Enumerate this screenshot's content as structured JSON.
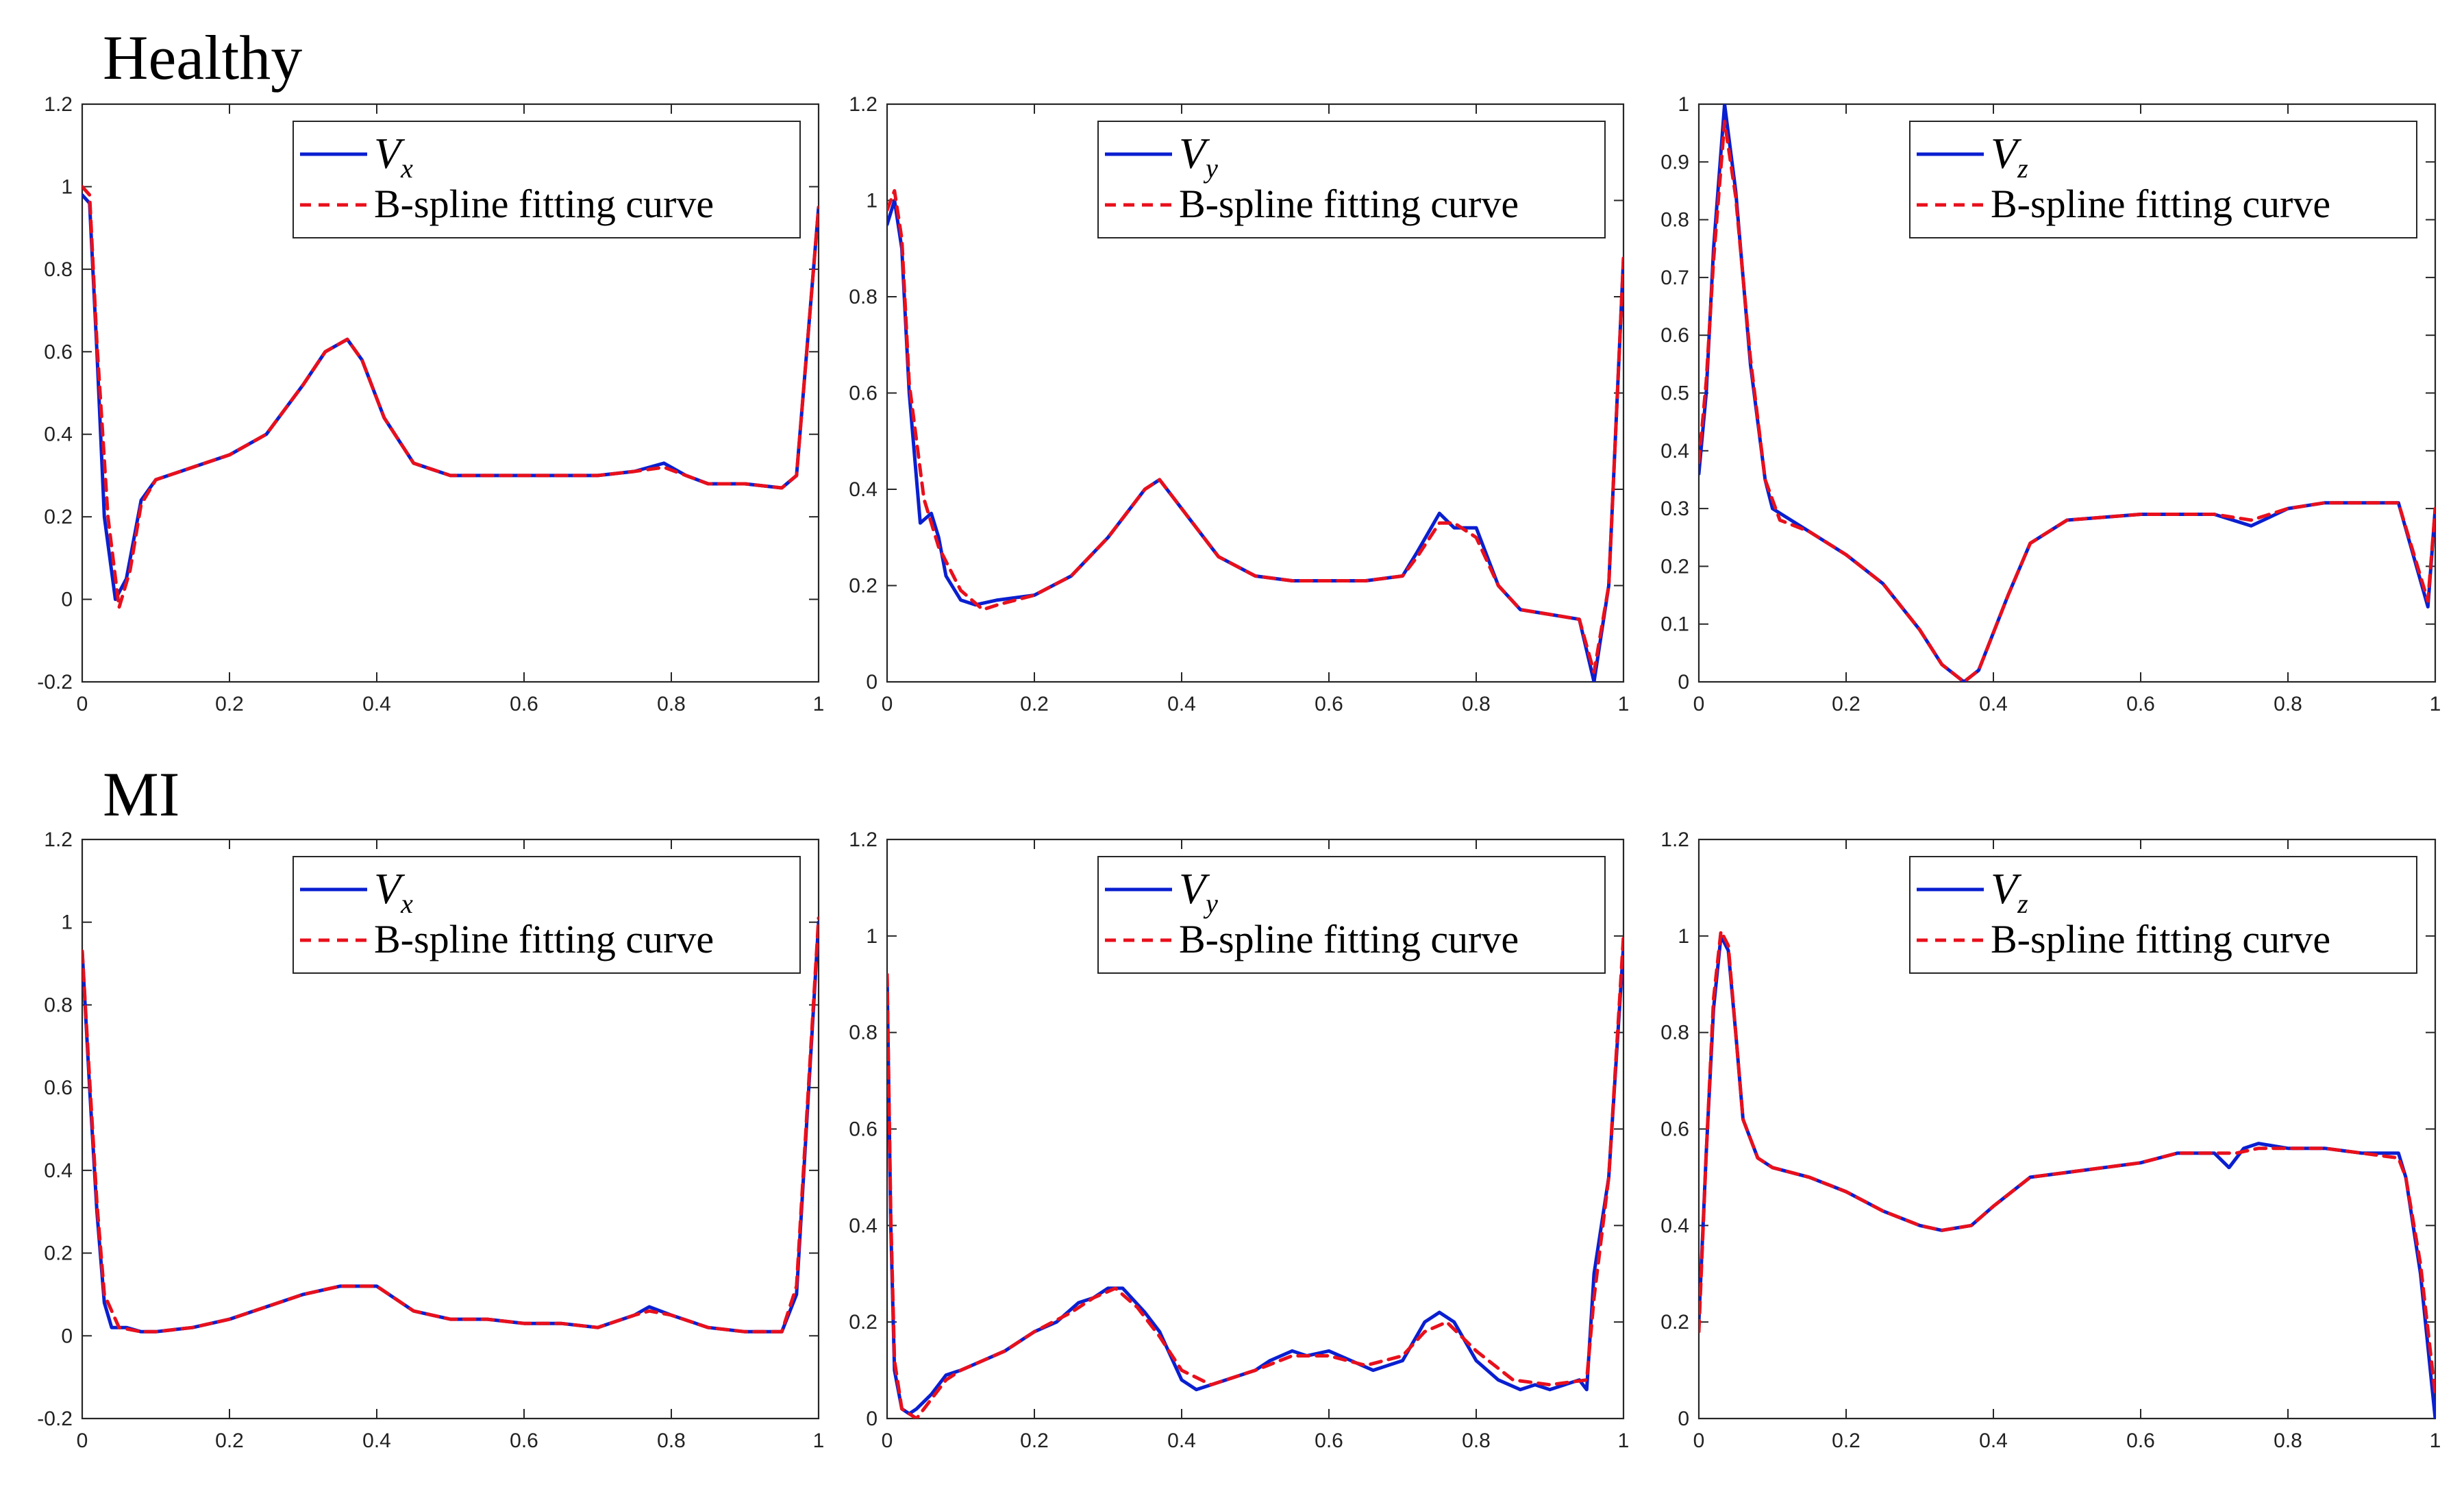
{
  "figure": {
    "row_titles": [
      "Healthy",
      "MI"
    ]
  },
  "colors": {
    "signal": "#0a1fd0",
    "fit": "#e8101c",
    "axis": "#262626"
  },
  "chart_data": [
    {
      "id": "healthy-vx",
      "type": "line",
      "row": "Healthy",
      "variable": "V",
      "subscript": "x",
      "xlim": [
        0,
        1
      ],
      "ylim": [
        -0.2,
        1.2
      ],
      "xticks": [
        "0",
        "0.2",
        "0.4",
        "0.6",
        "0.8",
        "1"
      ],
      "yticks": [
        "-0.2",
        "0",
        "0.2",
        "0.4",
        "0.6",
        "0.8",
        "1",
        "1.2"
      ],
      "legend": [
        "V_x",
        "B-spline fitting curve"
      ],
      "series": [
        {
          "name": "V_x",
          "style": "solid",
          "x": [
            0,
            0.01,
            0.02,
            0.03,
            0.045,
            0.06,
            0.08,
            0.1,
            0.15,
            0.2,
            0.25,
            0.3,
            0.33,
            0.36,
            0.38,
            0.41,
            0.45,
            0.5,
            0.6,
            0.7,
            0.75,
            0.79,
            0.82,
            0.85,
            0.9,
            0.95,
            0.97,
            1.0
          ],
          "y": [
            0.98,
            0.96,
            0.6,
            0.2,
            0.0,
            0.05,
            0.24,
            0.29,
            0.32,
            0.35,
            0.4,
            0.52,
            0.6,
            0.63,
            0.58,
            0.44,
            0.33,
            0.3,
            0.3,
            0.3,
            0.31,
            0.33,
            0.3,
            0.28,
            0.28,
            0.27,
            0.3,
            0.95
          ]
        },
        {
          "name": "B-spline fitting curve",
          "style": "dashed",
          "x": [
            0,
            0.01,
            0.02,
            0.035,
            0.05,
            0.065,
            0.08,
            0.1,
            0.15,
            0.2,
            0.25,
            0.3,
            0.33,
            0.36,
            0.38,
            0.41,
            0.45,
            0.5,
            0.6,
            0.7,
            0.75,
            0.79,
            0.82,
            0.85,
            0.9,
            0.95,
            0.97,
            1.0
          ],
          "y": [
            1.0,
            0.98,
            0.62,
            0.2,
            -0.02,
            0.07,
            0.23,
            0.29,
            0.32,
            0.35,
            0.4,
            0.52,
            0.6,
            0.63,
            0.58,
            0.44,
            0.33,
            0.3,
            0.3,
            0.3,
            0.31,
            0.32,
            0.3,
            0.28,
            0.28,
            0.27,
            0.3,
            0.95
          ]
        }
      ]
    },
    {
      "id": "healthy-vy",
      "type": "line",
      "row": "Healthy",
      "variable": "V",
      "subscript": "y",
      "xlim": [
        0,
        1
      ],
      "ylim": [
        0,
        1.2
      ],
      "xticks": [
        "0",
        "0.2",
        "0.4",
        "0.6",
        "0.8",
        "1"
      ],
      "yticks": [
        "0",
        "0.2",
        "0.4",
        "0.6",
        "0.8",
        "1",
        "1.2"
      ],
      "legend": [
        "V_y",
        "B-spline fitting curve"
      ],
      "series": [
        {
          "name": "V_y",
          "style": "solid",
          "x": [
            0,
            0.01,
            0.02,
            0.03,
            0.045,
            0.06,
            0.07,
            0.08,
            0.1,
            0.12,
            0.15,
            0.2,
            0.25,
            0.3,
            0.35,
            0.37,
            0.4,
            0.45,
            0.5,
            0.55,
            0.6,
            0.65,
            0.7,
            0.72,
            0.75,
            0.77,
            0.8,
            0.83,
            0.86,
            0.9,
            0.94,
            0.96,
            0.98,
            1.0
          ],
          "y": [
            0.95,
            1.0,
            0.9,
            0.6,
            0.33,
            0.35,
            0.3,
            0.22,
            0.17,
            0.16,
            0.17,
            0.18,
            0.22,
            0.3,
            0.4,
            0.42,
            0.36,
            0.26,
            0.22,
            0.21,
            0.21,
            0.21,
            0.22,
            0.27,
            0.35,
            0.32,
            0.32,
            0.2,
            0.15,
            0.14,
            0.13,
            0.0,
            0.2,
            0.88
          ]
        },
        {
          "name": "B-spline fitting curve",
          "style": "dashed",
          "x": [
            0,
            0.01,
            0.02,
            0.03,
            0.05,
            0.07,
            0.1,
            0.13,
            0.15,
            0.2,
            0.25,
            0.3,
            0.35,
            0.37,
            0.4,
            0.45,
            0.5,
            0.55,
            0.6,
            0.65,
            0.7,
            0.72,
            0.75,
            0.77,
            0.8,
            0.83,
            0.86,
            0.9,
            0.94,
            0.96,
            0.98,
            1.0
          ],
          "y": [
            0.98,
            1.02,
            0.92,
            0.62,
            0.38,
            0.28,
            0.19,
            0.15,
            0.16,
            0.18,
            0.22,
            0.3,
            0.4,
            0.42,
            0.36,
            0.26,
            0.22,
            0.21,
            0.21,
            0.21,
            0.22,
            0.26,
            0.33,
            0.33,
            0.3,
            0.2,
            0.15,
            0.14,
            0.13,
            0.02,
            0.2,
            0.88
          ]
        }
      ]
    },
    {
      "id": "healthy-vz",
      "type": "line",
      "row": "Healthy",
      "variable": "V",
      "subscript": "z",
      "xlim": [
        0,
        1
      ],
      "ylim": [
        0,
        1
      ],
      "xticks": [
        "0",
        "0.2",
        "0.4",
        "0.6",
        "0.8",
        "1"
      ],
      "yticks": [
        "0",
        "0.1",
        "0.2",
        "0.3",
        "0.4",
        "0.5",
        "0.6",
        "0.7",
        "0.8",
        "0.9",
        "1"
      ],
      "legend": [
        "V_z",
        "B-spline fitting curve"
      ],
      "series": [
        {
          "name": "V_z",
          "style": "solid",
          "x": [
            0,
            0.01,
            0.02,
            0.035,
            0.05,
            0.07,
            0.09,
            0.1,
            0.15,
            0.2,
            0.25,
            0.3,
            0.33,
            0.36,
            0.38,
            0.42,
            0.45,
            0.5,
            0.6,
            0.7,
            0.75,
            0.8,
            0.85,
            0.9,
            0.95,
            0.99,
            1.0
          ],
          "y": [
            0.36,
            0.5,
            0.75,
            1.0,
            0.85,
            0.55,
            0.35,
            0.3,
            0.26,
            0.22,
            0.17,
            0.09,
            0.03,
            0.0,
            0.02,
            0.15,
            0.24,
            0.28,
            0.29,
            0.29,
            0.27,
            0.3,
            0.31,
            0.31,
            0.31,
            0.13,
            0.3
          ]
        },
        {
          "name": "B-spline fitting curve",
          "style": "dashed",
          "x": [
            0,
            0.01,
            0.02,
            0.035,
            0.05,
            0.07,
            0.09,
            0.11,
            0.15,
            0.2,
            0.25,
            0.3,
            0.33,
            0.36,
            0.38,
            0.42,
            0.45,
            0.5,
            0.6,
            0.7,
            0.75,
            0.8,
            0.85,
            0.9,
            0.95,
            0.99,
            1.0
          ],
          "y": [
            0.38,
            0.52,
            0.73,
            0.97,
            0.84,
            0.56,
            0.35,
            0.28,
            0.26,
            0.22,
            0.17,
            0.09,
            0.03,
            0.0,
            0.02,
            0.15,
            0.24,
            0.28,
            0.29,
            0.29,
            0.28,
            0.3,
            0.31,
            0.31,
            0.31,
            0.14,
            0.3
          ]
        }
      ]
    },
    {
      "id": "mi-vx",
      "type": "line",
      "row": "MI",
      "variable": "V",
      "subscript": "x",
      "xlim": [
        0,
        1
      ],
      "ylim": [
        -0.2,
        1.2
      ],
      "xticks": [
        "0",
        "0.2",
        "0.4",
        "0.6",
        "0.8",
        "1"
      ],
      "yticks": [
        "-0.2",
        "0",
        "0.2",
        "0.4",
        "0.6",
        "0.8",
        "1",
        "1.2"
      ],
      "legend": [
        "V_x",
        "B-spline fitting curve"
      ],
      "series": [
        {
          "name": "V_x",
          "style": "solid",
          "x": [
            0,
            0.01,
            0.02,
            0.03,
            0.04,
            0.06,
            0.08,
            0.1,
            0.15,
            0.2,
            0.25,
            0.3,
            0.35,
            0.4,
            0.45,
            0.5,
            0.55,
            0.6,
            0.65,
            0.7,
            0.75,
            0.77,
            0.8,
            0.85,
            0.9,
            0.95,
            0.97,
            1.0
          ],
          "y": [
            0.93,
            0.6,
            0.3,
            0.08,
            0.02,
            0.02,
            0.01,
            0.01,
            0.02,
            0.04,
            0.07,
            0.1,
            0.12,
            0.12,
            0.06,
            0.04,
            0.04,
            0.03,
            0.03,
            0.02,
            0.05,
            0.07,
            0.05,
            0.02,
            0.01,
            0.01,
            0.1,
            1.0
          ]
        },
        {
          "name": "B-spline fitting curve",
          "style": "dashed",
          "x": [
            0,
            0.01,
            0.02,
            0.03,
            0.05,
            0.08,
            0.1,
            0.15,
            0.2,
            0.25,
            0.3,
            0.35,
            0.4,
            0.45,
            0.5,
            0.55,
            0.6,
            0.65,
            0.7,
            0.75,
            0.77,
            0.8,
            0.85,
            0.9,
            0.95,
            0.97,
            1.0
          ],
          "y": [
            0.93,
            0.62,
            0.32,
            0.1,
            0.02,
            0.01,
            0.01,
            0.02,
            0.04,
            0.07,
            0.1,
            0.12,
            0.12,
            0.06,
            0.04,
            0.04,
            0.03,
            0.03,
            0.02,
            0.05,
            0.06,
            0.05,
            0.02,
            0.01,
            0.01,
            0.12,
            1.01
          ]
        }
      ]
    },
    {
      "id": "mi-vy",
      "type": "line",
      "row": "MI",
      "variable": "V",
      "subscript": "y",
      "xlim": [
        0,
        1
      ],
      "ylim": [
        0,
        1.2
      ],
      "xticks": [
        "0",
        "0.2",
        "0.4",
        "0.6",
        "0.8",
        "1"
      ],
      "yticks": [
        "0",
        "0.2",
        "0.4",
        "0.6",
        "0.8",
        "1",
        "1.2"
      ],
      "legend": [
        "V_y",
        "B-spline fitting curve"
      ],
      "series": [
        {
          "name": "V_y",
          "style": "solid",
          "x": [
            0,
            0.005,
            0.01,
            0.02,
            0.03,
            0.04,
            0.06,
            0.08,
            0.1,
            0.13,
            0.16,
            0.2,
            0.23,
            0.26,
            0.28,
            0.3,
            0.32,
            0.35,
            0.37,
            0.4,
            0.42,
            0.44,
            0.46,
            0.5,
            0.52,
            0.55,
            0.57,
            0.6,
            0.63,
            0.66,
            0.7,
            0.73,
            0.75,
            0.77,
            0.8,
            0.83,
            0.86,
            0.88,
            0.9,
            0.92,
            0.94,
            0.95,
            0.96,
            0.98,
            1.0
          ],
          "y": [
            0.92,
            0.4,
            0.1,
            0.02,
            0.01,
            0.02,
            0.05,
            0.09,
            0.1,
            0.12,
            0.14,
            0.18,
            0.2,
            0.24,
            0.25,
            0.27,
            0.27,
            0.22,
            0.18,
            0.08,
            0.06,
            0.07,
            0.08,
            0.1,
            0.12,
            0.14,
            0.13,
            0.14,
            0.12,
            0.1,
            0.12,
            0.2,
            0.22,
            0.2,
            0.12,
            0.08,
            0.06,
            0.07,
            0.06,
            0.07,
            0.08,
            0.06,
            0.3,
            0.5,
            0.98
          ]
        },
        {
          "name": "B-spline fitting curve",
          "style": "dashed",
          "x": [
            0,
            0.005,
            0.01,
            0.02,
            0.03,
            0.04,
            0.06,
            0.08,
            0.1,
            0.13,
            0.16,
            0.2,
            0.25,
            0.28,
            0.31,
            0.34,
            0.37,
            0.4,
            0.44,
            0.5,
            0.55,
            0.6,
            0.65,
            0.7,
            0.73,
            0.76,
            0.8,
            0.85,
            0.9,
            0.95,
            0.96,
            0.98,
            1.0
          ],
          "y": [
            0.92,
            0.42,
            0.12,
            0.02,
            0.01,
            0.0,
            0.04,
            0.08,
            0.1,
            0.12,
            0.14,
            0.18,
            0.22,
            0.25,
            0.27,
            0.23,
            0.17,
            0.1,
            0.07,
            0.1,
            0.13,
            0.13,
            0.11,
            0.13,
            0.18,
            0.2,
            0.14,
            0.08,
            0.07,
            0.08,
            0.25,
            0.5,
            1.0
          ]
        }
      ]
    },
    {
      "id": "mi-vz",
      "type": "line",
      "row": "MI",
      "variable": "V",
      "subscript": "z",
      "xlim": [
        0,
        1
      ],
      "ylim": [
        0,
        1.2
      ],
      "xticks": [
        "0",
        "0.2",
        "0.4",
        "0.6",
        "0.8",
        "1"
      ],
      "yticks": [
        "0",
        "0.2",
        "0.4",
        "0.6",
        "0.8",
        "1",
        "1.2"
      ],
      "legend": [
        "V_z",
        "B-spline fitting curve"
      ],
      "series": [
        {
          "name": "V_z",
          "style": "solid",
          "x": [
            0,
            0.01,
            0.02,
            0.03,
            0.04,
            0.05,
            0.06,
            0.08,
            0.1,
            0.15,
            0.2,
            0.25,
            0.3,
            0.33,
            0.37,
            0.4,
            0.45,
            0.5,
            0.55,
            0.6,
            0.65,
            0.7,
            0.72,
            0.74,
            0.76,
            0.8,
            0.85,
            0.9,
            0.95,
            0.96,
            0.98,
            1.0
          ],
          "y": [
            0.2,
            0.55,
            0.85,
            1.0,
            0.97,
            0.8,
            0.62,
            0.54,
            0.52,
            0.5,
            0.47,
            0.43,
            0.4,
            0.39,
            0.4,
            0.44,
            0.5,
            0.51,
            0.52,
            0.53,
            0.55,
            0.55,
            0.52,
            0.56,
            0.57,
            0.56,
            0.56,
            0.55,
            0.55,
            0.5,
            0.3,
            0.0
          ]
        },
        {
          "name": "B-spline fitting curve",
          "style": "dashed",
          "x": [
            0,
            0.01,
            0.02,
            0.03,
            0.04,
            0.05,
            0.06,
            0.08,
            0.1,
            0.15,
            0.2,
            0.25,
            0.3,
            0.33,
            0.37,
            0.4,
            0.45,
            0.5,
            0.55,
            0.6,
            0.65,
            0.7,
            0.73,
            0.76,
            0.8,
            0.85,
            0.9,
            0.95,
            0.96,
            0.98,
            1.0
          ],
          "y": [
            0.18,
            0.55,
            0.87,
            1.01,
            0.98,
            0.8,
            0.62,
            0.54,
            0.52,
            0.5,
            0.47,
            0.43,
            0.4,
            0.39,
            0.4,
            0.44,
            0.5,
            0.51,
            0.52,
            0.53,
            0.55,
            0.55,
            0.55,
            0.56,
            0.56,
            0.56,
            0.55,
            0.54,
            0.5,
            0.32,
            0.05
          ]
        }
      ]
    }
  ]
}
